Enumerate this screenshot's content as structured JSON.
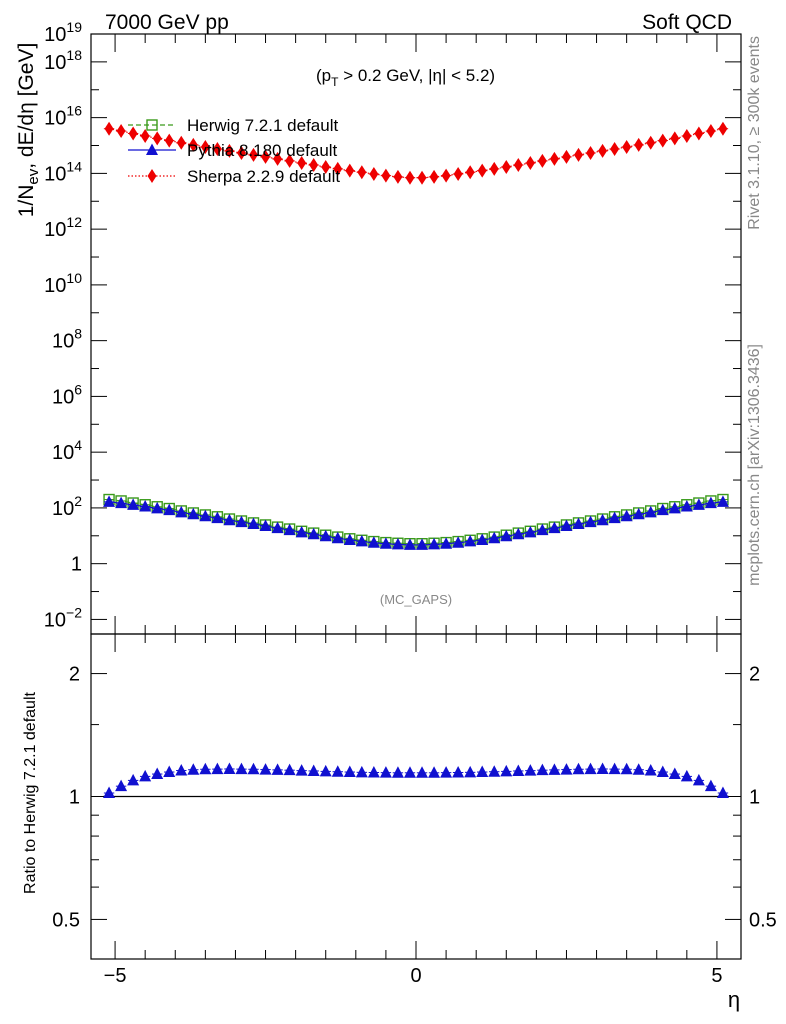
{
  "header": {
    "left": "7000 GeV pp",
    "right": "Soft QCD"
  },
  "side": {
    "rivet": "Rivet 3.1.10, ≥ 300k events",
    "mcplots": "mcplots.cern.ch [arXiv:1306.3436]"
  },
  "chart_data": [
    {
      "type": "scatter",
      "panel": "main",
      "ylabel": "1/N_ev, dE/dη [GeV]",
      "yscale": "log",
      "ylim": [
        0.003,
        1e+19
      ],
      "xlim": [
        -5.4,
        5.4
      ],
      "y_tick_labels": [
        "10^-2",
        "1",
        "10^2",
        "10^4",
        "10^6",
        "10^8",
        "10^10",
        "10^12",
        "10^14",
        "10^16",
        "10^18",
        "10^19"
      ],
      "x_tick_labels": [
        "−5",
        "0",
        "5"
      ],
      "annotation": "(p_T > 0.2 GeV, |η| < 5.2)",
      "watermark": "(MC_GAPS)",
      "legend_position": "top-left",
      "x": [
        -5.1,
        -4.9,
        -4.7,
        -4.5,
        -4.3,
        -4.1,
        -3.9,
        -3.7,
        -3.5,
        -3.3,
        -3.1,
        -2.9,
        -2.7,
        -2.5,
        -2.3,
        -2.1,
        -1.9,
        -1.7,
        -1.5,
        -1.3,
        -1.1,
        -0.9,
        -0.7,
        -0.5,
        -0.3,
        -0.1,
        0.1,
        0.3,
        0.5,
        0.7,
        0.9,
        1.1,
        1.3,
        1.5,
        1.7,
        1.9,
        2.1,
        2.3,
        2.5,
        2.7,
        2.9,
        3.1,
        3.3,
        3.5,
        3.7,
        3.9,
        4.1,
        4.3,
        4.5,
        4.7,
        4.9,
        5.1
      ],
      "series": [
        {
          "name": "Herwig 7.2.1 default",
          "color": "#3a9a1a",
          "marker": "open-square",
          "line": "dashed",
          "values": [
            200,
            178,
            150,
            130,
            110,
            95,
            78,
            66,
            56,
            48,
            40,
            34,
            29,
            24.5,
            20.5,
            17.5,
            14.5,
            12.5,
            10.5,
            9,
            7.8,
            6.9,
            6.2,
            5.7,
            5.4,
            5.2,
            5.2,
            5.4,
            5.7,
            6.2,
            6.9,
            7.8,
            9,
            10.5,
            12.5,
            14.5,
            17.5,
            20.5,
            24.5,
            29,
            34,
            40,
            48,
            56,
            66,
            78,
            95,
            110,
            130,
            150,
            178,
            200
          ]
        },
        {
          "name": "Pythia 8.180 default",
          "color": "#1010d0",
          "marker": "triangle",
          "line": "solid",
          "values": [
            165,
            148,
            128,
            112,
            96,
            83,
            69,
            59,
            50,
            43,
            36,
            31,
            26.5,
            22.4,
            18.8,
            16,
            13.3,
            11.4,
            9.6,
            8.2,
            7.1,
            6.3,
            5.6,
            5.2,
            4.9,
            4.7,
            4.7,
            4.9,
            5.2,
            5.6,
            6.3,
            7.1,
            8.2,
            9.6,
            11.4,
            13.3,
            16,
            18.8,
            22.4,
            26.5,
            31,
            36,
            43,
            50,
            59,
            69,
            83,
            96,
            112,
            128,
            148,
            165
          ]
        },
        {
          "name": "Sherpa 2.2.9 default",
          "color": "#ee0000",
          "marker": "diamond",
          "line": "dotted",
          "values": [
            4000000000000000.0,
            3300000000000000.0,
            2700000000000000.0,
            2200000000000000.0,
            1800000000000000.0,
            1500000000000000.0,
            1250000000000000.0,
            1050000000000000.0,
            880000000000000.0,
            750000000000000.0,
            640000000000000.0,
            540000000000000.0,
            460000000000000.0,
            390000000000000.0,
            330000000000000.0,
            280000000000000.0,
            235000000000000.0,
            200000000000000.0,
            170000000000000.0,
            145000000000000.0,
            125000000000000.0,
            110000000000000.0,
            95000000000000.0,
            83000000000000.0,
            75000000000000.0,
            70000000000000.0,
            70000000000000.0,
            75000000000000.0,
            83000000000000.0,
            95000000000000.0,
            110000000000000.0,
            125000000000000.0,
            145000000000000.0,
            170000000000000.0,
            200000000000000.0,
            235000000000000.0,
            280000000000000.0,
            330000000000000.0,
            390000000000000.0,
            460000000000000.0,
            540000000000000.0,
            640000000000000.0,
            750000000000000.0,
            880000000000000.0,
            1050000000000000.0,
            1250000000000000.0,
            1500000000000000.0,
            1800000000000000.0,
            2200000000000000.0,
            2700000000000000.0,
            3300000000000000.0,
            4000000000000000.0
          ]
        }
      ]
    },
    {
      "type": "scatter",
      "panel": "ratio",
      "ylabel": "Ratio to Herwig 7.2.1 default",
      "xlabel": "η",
      "yscale": "log",
      "ylim": [
        0.4,
        2.5
      ],
      "xlim": [
        -5.4,
        5.4
      ],
      "y_tick_labels": [
        "0.5",
        "1",
        "2"
      ],
      "x_tick_labels": [
        "−5",
        "0",
        "5"
      ],
      "x": [
        -5.1,
        -4.9,
        -4.7,
        -4.5,
        -4.3,
        -4.1,
        -3.9,
        -3.7,
        -3.5,
        -3.3,
        -3.1,
        -2.9,
        -2.7,
        -2.5,
        -2.3,
        -2.1,
        -1.9,
        -1.7,
        -1.5,
        -1.3,
        -1.1,
        -0.9,
        -0.7,
        -0.5,
        -0.3,
        -0.1,
        0.1,
        0.3,
        0.5,
        0.7,
        0.9,
        1.1,
        1.3,
        1.5,
        1.7,
        1.9,
        2.1,
        2.3,
        2.5,
        2.7,
        2.9,
        3.1,
        3.3,
        3.5,
        3.7,
        3.9,
        4.1,
        4.3,
        4.5,
        4.7,
        4.9,
        5.1
      ],
      "series": [
        {
          "name": "Herwig 7.2.1 default",
          "color": "#000000",
          "values": [
            1,
            1,
            1,
            1,
            1,
            1,
            1,
            1,
            1,
            1,
            1,
            1,
            1,
            1,
            1,
            1,
            1,
            1,
            1,
            1,
            1,
            1,
            1,
            1,
            1,
            1,
            1,
            1,
            1,
            1,
            1,
            1,
            1,
            1,
            1,
            1,
            1,
            1,
            1,
            1,
            1,
            1,
            1,
            1,
            1,
            1,
            1,
            1,
            1,
            1,
            1,
            1
          ]
        },
        {
          "name": "Pythia 8.180 default",
          "color": "#1010d0",
          "values": [
            1.02,
            1.06,
            1.095,
            1.12,
            1.135,
            1.148,
            1.158,
            1.163,
            1.166,
            1.167,
            1.168,
            1.167,
            1.166,
            1.164,
            1.162,
            1.16,
            1.157,
            1.155,
            1.152,
            1.15,
            1.148,
            1.146,
            1.145,
            1.144,
            1.143,
            1.143,
            1.143,
            1.143,
            1.144,
            1.145,
            1.146,
            1.148,
            1.15,
            1.152,
            1.155,
            1.157,
            1.16,
            1.162,
            1.164,
            1.166,
            1.167,
            1.168,
            1.167,
            1.166,
            1.163,
            1.158,
            1.148,
            1.135,
            1.12,
            1.095,
            1.06,
            1.02
          ]
        }
      ]
    }
  ]
}
